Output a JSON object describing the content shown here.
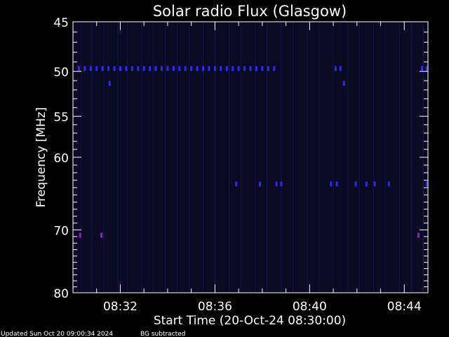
{
  "chart_data": {
    "type": "heatmap",
    "title": "Solar radio Flux (Glasgow)",
    "xlabel": "Start Time (20-Oct-24 08:30:00)",
    "ylabel": "Frequency [MHz]",
    "x_range_minutes": [
      0,
      15
    ],
    "x_ticks": [
      {
        "minute": 2,
        "label": "08:32"
      },
      {
        "minute": 6,
        "label": "08:36"
      },
      {
        "minute": 10,
        "label": "08:40"
      },
      {
        "minute": 14,
        "label": "08:44"
      }
    ],
    "y_range_mhz": [
      45,
      80
    ],
    "y_scale": "log",
    "y_ticks": [
      45,
      50,
      55,
      60,
      70,
      80
    ],
    "grid": false,
    "colors": {
      "background": "#000000",
      "plot_bg": "#0a0a24",
      "axes": "#ffffff",
      "stripe": "#1e1e66",
      "interference_blue": "#2a2aff",
      "interference_violet": "#8a20c8"
    },
    "interference": [
      {
        "mhz": 49.7,
        "minutes": [
          0.25,
          0.5,
          0.75,
          1.0,
          1.25,
          1.5,
          1.75,
          2.0,
          2.25,
          2.5,
          2.75,
          3.0,
          3.25,
          3.5,
          3.75,
          4.0,
          4.25,
          4.5,
          4.75,
          5.0,
          5.25,
          5.5,
          5.75,
          6.0,
          6.25,
          6.5,
          6.75,
          7.0,
          7.25,
          7.5,
          7.75,
          8.0,
          8.25,
          8.5,
          11.1,
          11.3,
          14.75,
          14.95
        ],
        "color": "interference_blue"
      },
      {
        "mhz": 51.3,
        "minutes": [
          1.55,
          11.45
        ],
        "color": "interference_blue"
      },
      {
        "mhz": 63.5,
        "minutes": [
          6.9,
          7.9,
          8.6,
          8.8,
          10.9,
          11.15,
          11.95,
          12.4,
          12.75,
          13.35,
          14.95
        ],
        "color": "interference_blue"
      },
      {
        "mhz": 70.8,
        "minutes": [
          0.3,
          1.2,
          14.6
        ],
        "color": "interference_violet"
      }
    ],
    "stripes_minutes": [
      0.35,
      0.8,
      1.3,
      1.9,
      2.3,
      2.9,
      3.4,
      3.9,
      4.4,
      4.9,
      5.5,
      6.0,
      6.6,
      7.1,
      7.7,
      8.2,
      8.8,
      9.3,
      9.9,
      10.4,
      11.0,
      11.6,
      12.1,
      12.7,
      13.2,
      13.8,
      14.3,
      14.8
    ]
  },
  "footer": {
    "updated": "Updated Sun Oct 20 09:00:34 2024",
    "note": "BG subtracted"
  }
}
